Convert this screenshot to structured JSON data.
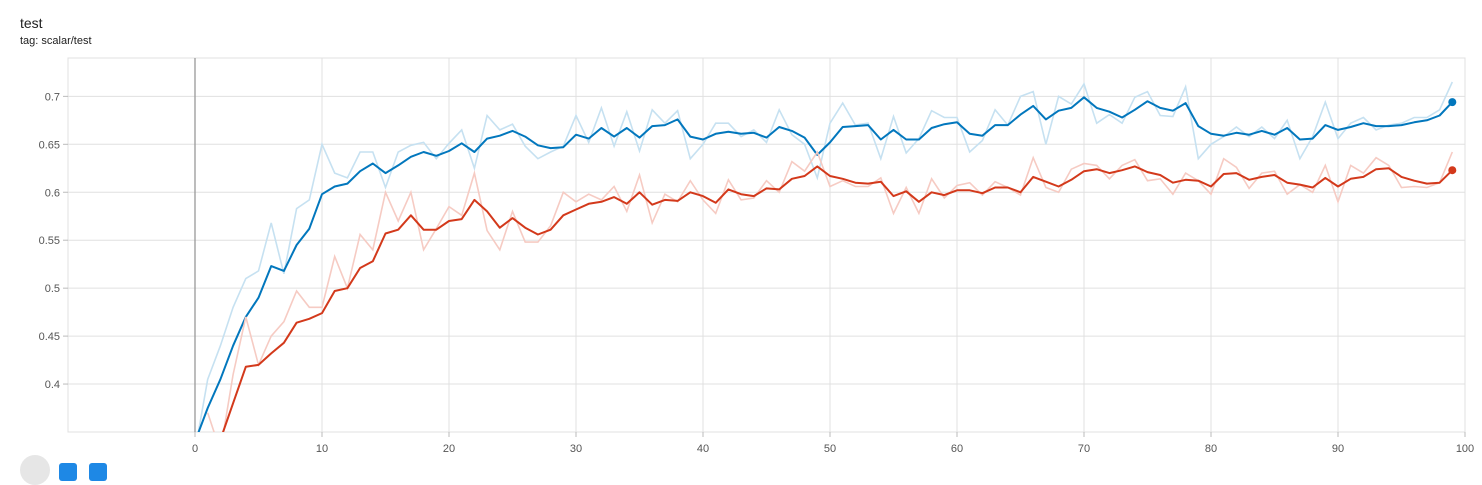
{
  "card": {
    "title": "test",
    "subtitle": "tag: scalar/test"
  },
  "colors": {
    "series_a": "#0277bd",
    "series_a_raw": "#c6e1f1",
    "series_b": "#d3391b",
    "series_b_raw": "#f6cbc3",
    "grid": "#e0e0e0",
    "zero_line": "#999999"
  },
  "toolbar": {
    "icons": [
      "expand-icon",
      "data-toggle-icon",
      "fit-domain-icon"
    ]
  },
  "chart_data": {
    "type": "line",
    "xlim": [
      -10,
      100
    ],
    "ylim": [
      0.35,
      0.74
    ],
    "x_ticks": [
      0,
      10,
      20,
      30,
      40,
      50,
      60,
      70,
      80,
      90,
      100
    ],
    "x_tick_labels": [
      "0",
      "10",
      "20",
      "30",
      "40",
      "50",
      "60",
      "70",
      "80",
      "90",
      "100"
    ],
    "y_ticks": [
      0.4,
      0.45,
      0.5,
      0.55,
      0.6,
      0.65,
      0.7
    ],
    "y_tick_labels": [
      "0.4",
      "0.45",
      "0.5",
      "0.55",
      "0.6",
      "0.65",
      "0.7"
    ],
    "grid": true,
    "series": [
      {
        "key": "a",
        "smoothed": [
          0.34,
          0.375,
          0.405,
          0.44,
          0.47,
          0.49,
          0.523,
          0.518,
          0.545,
          0.562,
          0.598,
          0.606,
          0.609,
          0.622,
          0.63,
          0.62,
          0.628,
          0.637,
          0.642,
          0.638,
          0.643,
          0.651,
          0.642,
          0.656,
          0.659,
          0.664,
          0.658,
          0.649,
          0.646,
          0.647,
          0.66,
          0.656,
          0.667,
          0.658,
          0.667,
          0.657,
          0.669,
          0.67,
          0.676,
          0.658,
          0.655,
          0.661,
          0.663,
          0.661,
          0.662,
          0.657,
          0.668,
          0.664,
          0.657,
          0.639,
          0.652,
          0.668,
          0.669,
          0.67,
          0.655,
          0.665,
          0.655,
          0.655,
          0.667,
          0.671,
          0.673,
          0.661,
          0.659,
          0.67,
          0.67,
          0.681,
          0.69,
          0.676,
          0.685,
          0.688,
          0.699,
          0.688,
          0.684,
          0.678,
          0.686,
          0.695,
          0.688,
          0.685,
          0.693,
          0.669,
          0.661,
          0.659,
          0.662,
          0.66,
          0.664,
          0.66,
          0.667,
          0.655,
          0.656,
          0.67,
          0.665,
          0.668,
          0.672,
          0.669,
          0.669,
          0.67,
          0.673,
          0.675,
          0.68,
          0.694
        ],
        "raw": [
          0.33,
          0.405,
          0.44,
          0.48,
          0.51,
          0.518,
          0.568,
          0.515,
          0.583,
          0.592,
          0.65,
          0.62,
          0.615,
          0.642,
          0.642,
          0.605,
          0.642,
          0.649,
          0.652,
          0.635,
          0.651,
          0.665,
          0.625,
          0.68,
          0.665,
          0.671,
          0.648,
          0.635,
          0.642,
          0.648,
          0.68,
          0.652,
          0.688,
          0.648,
          0.684,
          0.643,
          0.686,
          0.672,
          0.685,
          0.635,
          0.65,
          0.672,
          0.672,
          0.658,
          0.665,
          0.652,
          0.686,
          0.66,
          0.65,
          0.615,
          0.672,
          0.693,
          0.67,
          0.672,
          0.635,
          0.679,
          0.641,
          0.656,
          0.685,
          0.678,
          0.678,
          0.642,
          0.654,
          0.686,
          0.67,
          0.7,
          0.705,
          0.65,
          0.7,
          0.692,
          0.713,
          0.672,
          0.681,
          0.672,
          0.699,
          0.705,
          0.68,
          0.679,
          0.71,
          0.635,
          0.65,
          0.658,
          0.668,
          0.658,
          0.668,
          0.656,
          0.675,
          0.635,
          0.658,
          0.694,
          0.656,
          0.672,
          0.678,
          0.665,
          0.67,
          0.672,
          0.678,
          0.678,
          0.686,
          0.715
        ]
      },
      {
        "key": "b",
        "smoothed": [
          null,
          0.348,
          0.342,
          0.38,
          0.418,
          0.42,
          0.432,
          0.443,
          0.464,
          0.468,
          0.474,
          0.497,
          0.5,
          0.521,
          0.528,
          0.557,
          0.561,
          0.576,
          0.561,
          0.561,
          0.57,
          0.572,
          0.592,
          0.58,
          0.563,
          0.573,
          0.563,
          0.556,
          0.561,
          0.576,
          0.582,
          0.588,
          0.59,
          0.595,
          0.588,
          0.6,
          0.587,
          0.592,
          0.591,
          0.6,
          0.596,
          0.589,
          0.603,
          0.598,
          0.596,
          0.604,
          0.603,
          0.614,
          0.617,
          0.627,
          0.617,
          0.614,
          0.61,
          0.609,
          0.611,
          0.596,
          0.601,
          0.59,
          0.6,
          0.597,
          0.602,
          0.602,
          0.599,
          0.605,
          0.605,
          0.6,
          0.616,
          0.611,
          0.606,
          0.613,
          0.622,
          0.624,
          0.62,
          0.623,
          0.627,
          0.621,
          0.618,
          0.61,
          0.613,
          0.612,
          0.606,
          0.619,
          0.62,
          0.613,
          0.616,
          0.618,
          0.61,
          0.608,
          0.605,
          0.615,
          0.606,
          0.614,
          0.616,
          0.624,
          0.625,
          0.616,
          0.612,
          0.609,
          0.61,
          0.623
        ],
        "raw": [
          null,
          0.37,
          0.33,
          0.41,
          0.47,
          0.42,
          0.45,
          0.465,
          0.497,
          0.48,
          0.48,
          0.533,
          0.5,
          0.556,
          0.54,
          0.6,
          0.57,
          0.6,
          0.54,
          0.562,
          0.585,
          0.576,
          0.62,
          0.56,
          0.54,
          0.58,
          0.548,
          0.548,
          0.565,
          0.6,
          0.59,
          0.598,
          0.592,
          0.606,
          0.58,
          0.618,
          0.568,
          0.598,
          0.59,
          0.612,
          0.592,
          0.578,
          0.613,
          0.592,
          0.594,
          0.612,
          0.6,
          0.632,
          0.622,
          0.642,
          0.606,
          0.612,
          0.606,
          0.606,
          0.615,
          0.578,
          0.605,
          0.578,
          0.614,
          0.594,
          0.607,
          0.61,
          0.597,
          0.611,
          0.605,
          0.597,
          0.636,
          0.605,
          0.6,
          0.624,
          0.63,
          0.628,
          0.614,
          0.628,
          0.634,
          0.612,
          0.614,
          0.598,
          0.62,
          0.612,
          0.598,
          0.635,
          0.626,
          0.604,
          0.62,
          0.622,
          0.598,
          0.608,
          0.6,
          0.628,
          0.59,
          0.628,
          0.62,
          0.636,
          0.628,
          0.605,
          0.606,
          0.605,
          0.61,
          0.642
        ]
      }
    ]
  }
}
